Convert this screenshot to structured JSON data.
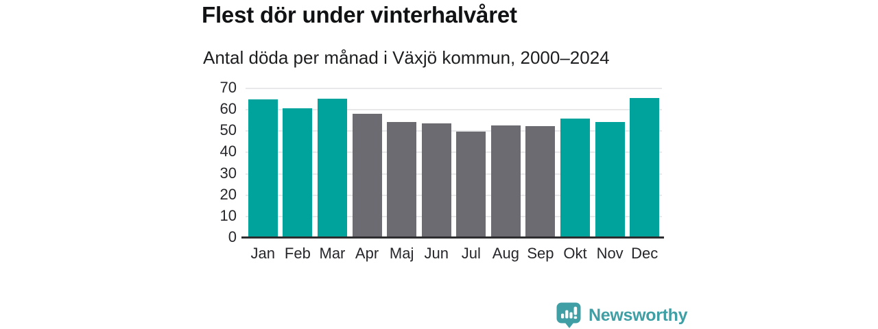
{
  "page": {
    "background": "#ffffff"
  },
  "header": {
    "title": "Flest dör under vinterhalvåret",
    "subtitle": "Antal döda per månad i Växjö kommun, 2000–2024"
  },
  "chart_data": {
    "type": "bar",
    "title": "Flest dör under vinterhalvåret",
    "subtitle": "Antal döda per månad i Växjö kommun, 2000–2024",
    "categories": [
      "Jan",
      "Feb",
      "Mar",
      "Apr",
      "Maj",
      "Jun",
      "Jul",
      "Aug",
      "Sep",
      "Okt",
      "Nov",
      "Dec"
    ],
    "values": [
      64.6,
      60.3,
      64.9,
      57.9,
      54.1,
      53.4,
      49.4,
      52.5,
      51.9,
      55.4,
      53.9,
      65.3
    ],
    "bar_groups": [
      "winter",
      "winter",
      "winter",
      "summer",
      "summer",
      "summer",
      "summer",
      "summer",
      "summer",
      "winter",
      "winter",
      "winter"
    ],
    "colors": {
      "winter": "#00a39b",
      "summer": "#6c6b71"
    },
    "xlabel": "",
    "ylabel": "",
    "ylim": [
      0,
      70
    ],
    "yticks": [
      0,
      10,
      20,
      30,
      40,
      50,
      60,
      70
    ],
    "grid": true,
    "legend": "none",
    "gridline_color": "#e8e8ea",
    "axis_line_color": "#2d2d2f"
  },
  "branding": {
    "name": "Newsworthy",
    "icon": "newsworthy-speech-bubble-chart-icon",
    "color": "#3f9fa4"
  }
}
